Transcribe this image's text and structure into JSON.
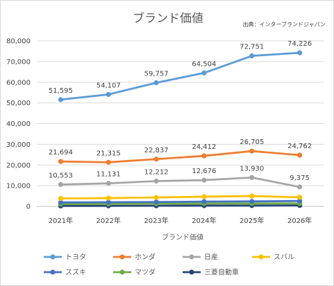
{
  "chart_data": {
    "type": "line",
    "title": "ブランド価値",
    "source": "出典：インターブランドジャパン",
    "xlabel": "ブランド価値",
    "ylabel": "",
    "categories": [
      "2021年",
      "2022年",
      "2023年",
      "2024年",
      "2025年",
      "2026年"
    ],
    "ylim": [
      0,
      80000
    ],
    "yticks": [
      0,
      10000,
      20000,
      30000,
      40000,
      50000,
      60000,
      70000,
      80000
    ],
    "ytick_labels": [
      "0",
      "10,000",
      "20,000",
      "30,000",
      "40,000",
      "50,000",
      "60,000",
      "70,000",
      "80,000"
    ],
    "grid": true,
    "legend_position": "bottom",
    "series": [
      {
        "name": "トヨタ",
        "color": "#5b9bd5",
        "values": [
          51595,
          54107,
          59757,
          64504,
          72751,
          74226
        ],
        "labels": [
          "51,595",
          "54,107",
          "59,757",
          "64,504",
          "72,751",
          "74,226"
        ]
      },
      {
        "name": "ホンダ",
        "color": "#ed7d31",
        "values": [
          21694,
          21315,
          22837,
          24412,
          26705,
          24762
        ],
        "labels": [
          "21,694",
          "21,315",
          "22,837",
          "24,412",
          "26,705",
          "24,762"
        ]
      },
      {
        "name": "日産",
        "color": "#a5a5a5",
        "values": [
          10553,
          11131,
          12212,
          12676,
          13930,
          9375
        ],
        "labels": [
          "10,553",
          "11,131",
          "12,212",
          "12,676",
          "13,930",
          "9,375"
        ]
      },
      {
        "name": "スバル",
        "color": "#ffc000",
        "values": [
          3800,
          4000,
          4300,
          4700,
          5000,
          4400
        ],
        "labels": []
      },
      {
        "name": "スズキ",
        "color": "#4472c4",
        "values": [
          1900,
          2000,
          2100,
          2300,
          2400,
          2600
        ],
        "labels": []
      },
      {
        "name": "マツダ",
        "color": "#70ad47",
        "values": [
          1100,
          1200,
          1300,
          1350,
          1400,
          1400
        ],
        "labels": []
      },
      {
        "name": "三菱自動車",
        "color": "#264478",
        "values": [
          200,
          250,
          300,
          350,
          400,
          450
        ],
        "labels": []
      }
    ]
  }
}
